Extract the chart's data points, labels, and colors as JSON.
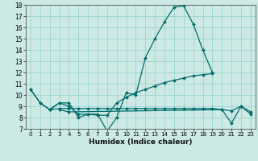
{
  "title": "",
  "xlabel": "Humidex (Indice chaleur)",
  "bg_color": "#cce9e5",
  "line_color": "#006b6b",
  "grid_color": "#99d5cf",
  "xmin": -0.5,
  "xmax": 23.5,
  "ymin": 7,
  "ymax": 18,
  "lines": [
    {
      "x": [
        0,
        1,
        2,
        3,
        4,
        5,
        6,
        7,
        8,
        9,
        10,
        11,
        12,
        13,
        14,
        15,
        16,
        17,
        18,
        19
      ],
      "y": [
        10.5,
        9.3,
        8.7,
        9.3,
        9.3,
        8.0,
        8.3,
        8.3,
        6.8,
        8.0,
        10.2,
        10.0,
        13.3,
        15.0,
        16.5,
        17.8,
        17.9,
        16.3,
        14.0,
        12.0
      ]
    },
    {
      "x": [
        0,
        1,
        2,
        3,
        4,
        5,
        6,
        7,
        8,
        9,
        10,
        11,
        12,
        13,
        14,
        15,
        16,
        17,
        18,
        19
      ],
      "y": [
        10.5,
        9.3,
        8.7,
        9.3,
        9.0,
        8.3,
        8.3,
        8.2,
        8.2,
        9.3,
        9.8,
        10.2,
        10.5,
        10.8,
        11.1,
        11.3,
        11.5,
        11.7,
        11.8,
        11.9
      ]
    },
    {
      "x": [
        2,
        3,
        4,
        5,
        6,
        7,
        8,
        9,
        10,
        11,
        12,
        13,
        14,
        15,
        16,
        17,
        18,
        19,
        20,
        21,
        22,
        23
      ],
      "y": [
        8.7,
        8.8,
        8.8,
        8.8,
        8.8,
        8.8,
        8.8,
        8.8,
        8.8,
        8.8,
        8.8,
        8.8,
        8.8,
        8.8,
        8.8,
        8.8,
        8.8,
        8.8,
        8.7,
        8.6,
        9.0,
        8.5
      ]
    },
    {
      "x": [
        3,
        4,
        20,
        21,
        22,
        23
      ],
      "y": [
        8.7,
        8.5,
        8.7,
        7.5,
        9.0,
        8.3
      ]
    }
  ],
  "yticks": [
    7,
    8,
    9,
    10,
    11,
    12,
    13,
    14,
    15,
    16,
    17,
    18
  ],
  "xticks": [
    0,
    1,
    2,
    3,
    4,
    5,
    6,
    7,
    8,
    9,
    10,
    11,
    12,
    13,
    14,
    15,
    16,
    17,
    18,
    19,
    20,
    21,
    22,
    23
  ]
}
